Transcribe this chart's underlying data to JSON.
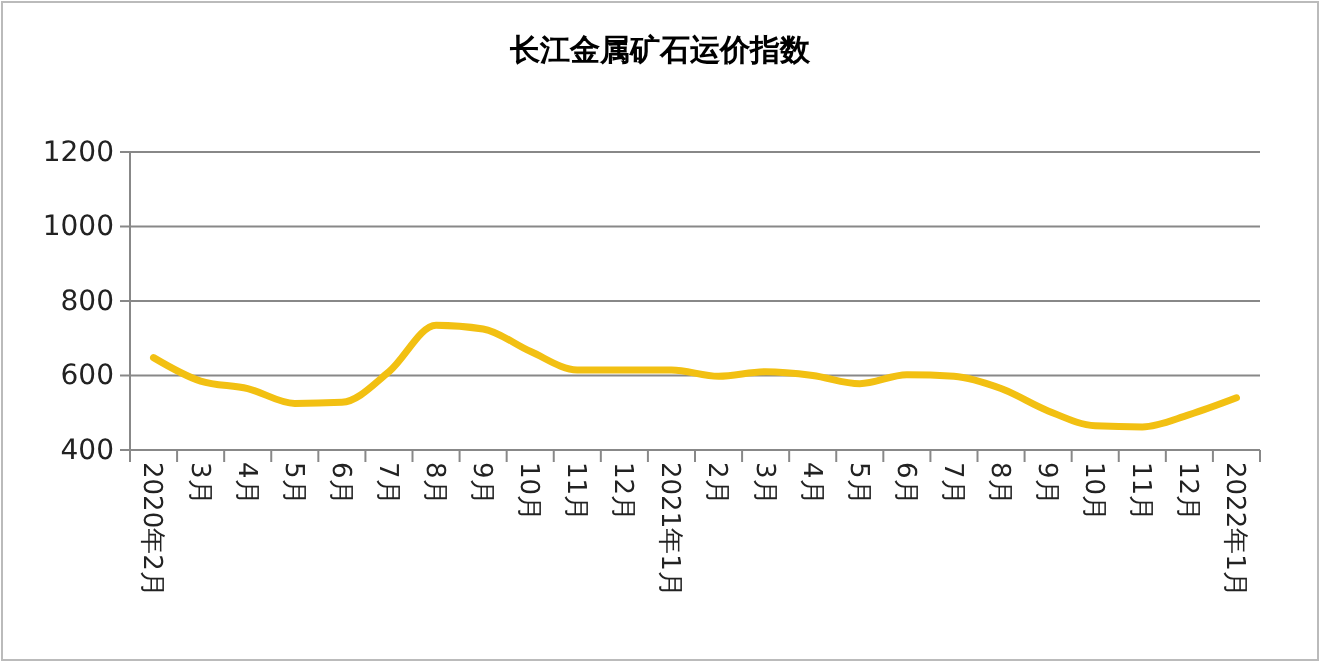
{
  "chart_data": {
    "type": "line",
    "title": "长江金属矿石运价指数",
    "categories": [
      "2020年2月",
      "3月",
      "4月",
      "5月",
      "6月",
      "7月",
      "8月",
      "9月",
      "10月",
      "11月",
      "12月",
      "2021年1月",
      "2月",
      "3月",
      "4月",
      "5月",
      "6月",
      "7月",
      "8月",
      "9月",
      "10月",
      "11月",
      "12月",
      "2022年1月"
    ],
    "series": [
      {
        "color": "#f2c012",
        "values": [
          648,
          585,
          565,
          525,
          528,
          610,
          735,
          725,
          665,
          615,
          615,
          615,
          598,
          610,
          600,
          578,
          602,
          598,
          565,
          505,
          465,
          462,
          495,
          540
        ]
      }
    ],
    "ylim": [
      400,
      1200
    ],
    "yticks": [
      400,
      600,
      800,
      1000,
      1200
    ],
    "grid": "y",
    "marker": "none",
    "line_style": "solid"
  }
}
